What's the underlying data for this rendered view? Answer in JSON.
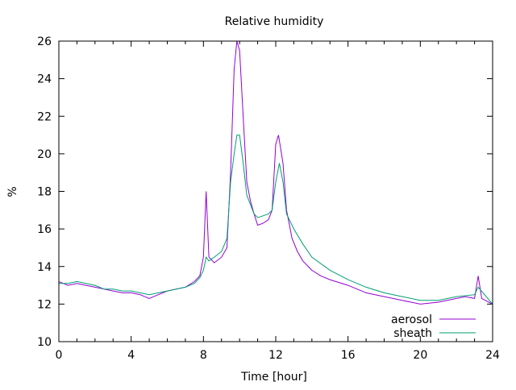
{
  "chart_data": {
    "type": "line",
    "title": "Relative humidity",
    "xlabel": "Time [hour]",
    "ylabel": "%",
    "xlim": [
      0,
      24
    ],
    "ylim": [
      10,
      26
    ],
    "xticks": [
      "0",
      "4",
      "8",
      "12",
      "16",
      "20",
      "24"
    ],
    "yticks": [
      "10",
      "12",
      "14",
      "16",
      "18",
      "20",
      "22",
      "24",
      "26"
    ],
    "legend_placement": "bottom-right",
    "series": [
      {
        "name": "aerosol",
        "color": "#9400D3",
        "x": [
          0,
          0.5,
          1,
          1.5,
          2,
          2.5,
          3,
          3.5,
          4,
          4.5,
          5,
          5.5,
          6,
          6.5,
          7,
          7.5,
          7.8,
          8.0,
          8.15,
          8.3,
          8.6,
          9,
          9.3,
          9.5,
          9.7,
          9.85,
          10.0,
          10.2,
          10.4,
          10.6,
          10.8,
          11,
          11.3,
          11.6,
          11.8,
          12.0,
          12.15,
          12.4,
          12.6,
          12.9,
          13.2,
          13.5,
          14,
          14.5,
          15,
          16,
          17,
          18,
          19,
          20,
          21,
          22,
          22.5,
          23,
          23.2,
          23.4,
          24
        ],
        "y": [
          13.2,
          13.0,
          13.1,
          13.0,
          12.9,
          12.8,
          12.7,
          12.6,
          12.6,
          12.5,
          12.3,
          12.5,
          12.7,
          12.8,
          12.9,
          13.2,
          13.5,
          14.5,
          18.0,
          14.5,
          14.2,
          14.5,
          15.0,
          19.0,
          24.5,
          26.0,
          25.5,
          22.0,
          18.5,
          17.5,
          16.8,
          16.2,
          16.3,
          16.5,
          17.0,
          20.5,
          21.0,
          19.5,
          17.0,
          15.5,
          14.8,
          14.3,
          13.8,
          13.5,
          13.3,
          13.0,
          12.6,
          12.4,
          12.2,
          12.0,
          12.1,
          12.3,
          12.4,
          12.3,
          13.5,
          12.3,
          12.0
        ]
      },
      {
        "name": "sheath",
        "color": "#009E73",
        "x": [
          0,
          0.5,
          1,
          1.5,
          2,
          2.5,
          3,
          3.5,
          4,
          4.5,
          5,
          5.5,
          6,
          6.5,
          7,
          7.5,
          7.8,
          8.0,
          8.15,
          8.3,
          8.6,
          9,
          9.3,
          9.5,
          9.7,
          9.85,
          10.0,
          10.2,
          10.4,
          10.6,
          10.8,
          11,
          11.3,
          11.6,
          11.8,
          12.0,
          12.2,
          12.4,
          12.6,
          13,
          13.5,
          14,
          15,
          16,
          17,
          18,
          19,
          20,
          21,
          22,
          23,
          23.2,
          24
        ],
        "y": [
          13.1,
          13.1,
          13.2,
          13.1,
          13.0,
          12.8,
          12.8,
          12.7,
          12.7,
          12.6,
          12.5,
          12.6,
          12.7,
          12.8,
          12.9,
          13.1,
          13.4,
          13.8,
          14.5,
          14.3,
          14.5,
          14.8,
          15.5,
          18.5,
          20.0,
          21.0,
          21.0,
          19.5,
          17.8,
          17.3,
          16.8,
          16.6,
          16.7,
          16.8,
          17.0,
          18.5,
          19.5,
          18.5,
          16.8,
          16.0,
          15.2,
          14.5,
          13.8,
          13.3,
          12.9,
          12.6,
          12.4,
          12.2,
          12.2,
          12.4,
          12.5,
          12.9,
          12.0
        ]
      }
    ]
  }
}
